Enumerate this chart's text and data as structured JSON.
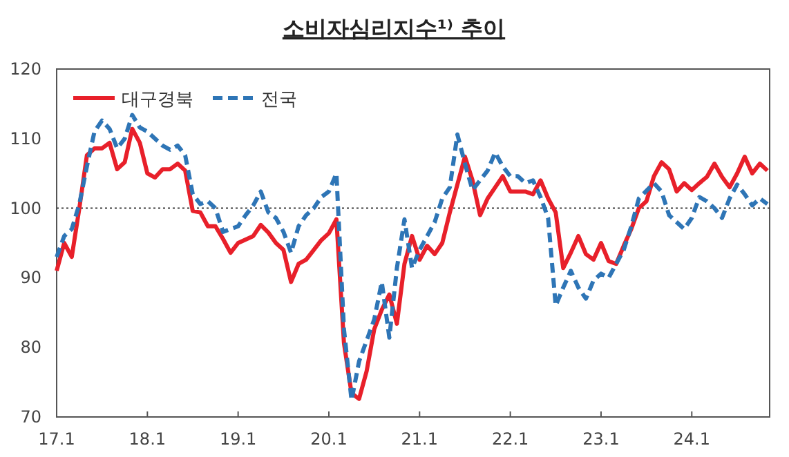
{
  "chart_data": {
    "type": "line",
    "title": "소비자심리지수¹⁾ 추이",
    "categories": [
      "17.1",
      null,
      null,
      null,
      null,
      null,
      null,
      null,
      null,
      null,
      null,
      null,
      "18.1",
      null,
      null,
      null,
      null,
      null,
      null,
      null,
      null,
      null,
      null,
      null,
      "19.1",
      null,
      null,
      null,
      null,
      null,
      null,
      null,
      null,
      null,
      null,
      null,
      "20.1",
      null,
      null,
      null,
      null,
      null,
      null,
      null,
      null,
      null,
      null,
      null,
      "21.1",
      null,
      null,
      null,
      null,
      null,
      null,
      null,
      null,
      null,
      null,
      null,
      "22.1",
      null,
      null,
      null,
      null,
      null,
      null,
      null,
      null,
      null,
      null,
      null,
      "23.1",
      null,
      null,
      null,
      null,
      null,
      null,
      null,
      null,
      null,
      null,
      null,
      "24.1",
      null,
      null,
      null,
      null,
      null,
      null,
      null,
      null,
      null,
      null
    ],
    "ylim": [
      70,
      120
    ],
    "yticks": [
      70,
      80,
      90,
      100,
      110,
      120
    ],
    "legend": "top left",
    "ref_lines": [
      {
        "axis": "y",
        "value": 100,
        "color": "#404040",
        "line_style": "dotted"
      }
    ],
    "series": [
      {
        "name": "대구경북",
        "color": "#e8202a",
        "line_style": "solid",
        "values": [
          91,
          95,
          93,
          100,
          107.6,
          108.6,
          108.6,
          109.4,
          105.6,
          106.6,
          111.4,
          109.4,
          105,
          104.4,
          105.6,
          105.6,
          106.4,
          105.4,
          99.6,
          99.4,
          97.4,
          97.4,
          95.6,
          93.6,
          95,
          95.5,
          96,
          97.6,
          96.5,
          95,
          94,
          89.4,
          92,
          92.6,
          94,
          95.4,
          96.4,
          98.4,
          80.6,
          73.4,
          72.6,
          76.6,
          82.6,
          85.4,
          87.6,
          83.4,
          92,
          96,
          92.6,
          94.6,
          93.4,
          95,
          99.4,
          103.4,
          107.4,
          104,
          99,
          101.4,
          103,
          104.6,
          102.4,
          102.4,
          102.4,
          102,
          104,
          101.4,
          99.4,
          91.4,
          93.6,
          96,
          93.4,
          92.6,
          95,
          92.4,
          92,
          94.6,
          97,
          100,
          101,
          104.6,
          106.6,
          105.6,
          102.4,
          103.6,
          102.6,
          103.6,
          104.5,
          106.4,
          104.5,
          103,
          105,
          107.4,
          105,
          106.4,
          105.4
        ]
      },
      {
        "name": "전국",
        "color": "#2e75b6",
        "line_style": "dashed",
        "values": [
          93,
          96,
          97,
          100.6,
          106,
          111,
          112.6,
          111.4,
          108.6,
          110,
          113.4,
          111.6,
          111,
          110,
          109,
          108.4,
          109,
          107.6,
          102,
          100.6,
          101,
          100,
          96.6,
          97,
          97.4,
          99,
          100.4,
          102.4,
          99.4,
          98.6,
          96.6,
          93.6,
          97.4,
          99,
          100,
          101.6,
          102.4,
          105,
          82.6,
          72.4,
          78,
          81,
          84,
          89.4,
          81.4,
          91.4,
          98.4,
          91.4,
          94,
          96,
          98,
          101.4,
          103,
          110.6,
          106.4,
          102.6,
          104,
          105.4,
          108,
          106,
          104.6,
          104.6,
          103.6,
          104,
          101.6,
          98.6,
          86,
          88.6,
          91,
          88.6,
          87,
          89.6,
          90.6,
          90,
          92,
          94,
          97.4,
          101.4,
          102.5,
          103.6,
          102.4,
          99,
          98,
          97,
          98.6,
          101.6,
          101,
          100,
          98.6,
          101.4,
          103.4,
          102,
          100.4,
          101.4,
          100.6
        ]
      }
    ]
  }
}
